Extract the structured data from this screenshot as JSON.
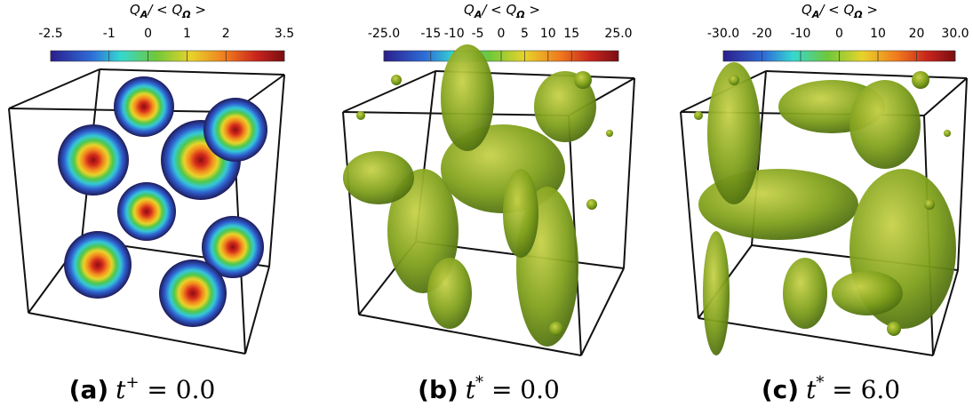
{
  "panels": [
    {
      "colorbar": {
        "title": [
          "Q",
          "A",
          "/ < Q",
          "Ω",
          " >"
        ],
        "clim": [
          -2.5,
          3.5
        ],
        "ticks": [
          -2.5,
          -1,
          0,
          1,
          2,
          3.5
        ]
      },
      "caption": [
        "(a)",
        "t",
        "+",
        " = 0.0"
      ]
    },
    {
      "colorbar": {
        "title": [
          "Q",
          "A",
          "/ < Q",
          "Ω",
          " >"
        ],
        "clim": [
          -25,
          25
        ],
        "ticks": [
          {
            "value": -25,
            "label": "-25.0"
          },
          -15,
          -10,
          -5,
          0,
          5,
          10,
          15,
          {
            "value": 25,
            "label": "25.0"
          }
        ]
      },
      "caption": [
        "(b)",
        "t",
        "*",
        " = 0.0"
      ]
    },
    {
      "colorbar": {
        "title": [
          "Q",
          "A",
          "/ < Q",
          "Ω",
          " >"
        ],
        "clim": [
          -30,
          30
        ],
        "ticks": [
          {
            "value": -30,
            "label": "-30.0"
          },
          -20,
          -10,
          0,
          10,
          20,
          {
            "value": 30,
            "label": "30.0"
          }
        ]
      },
      "caption": [
        "(c)",
        "t",
        "*",
        " = 6.0"
      ]
    }
  ]
}
